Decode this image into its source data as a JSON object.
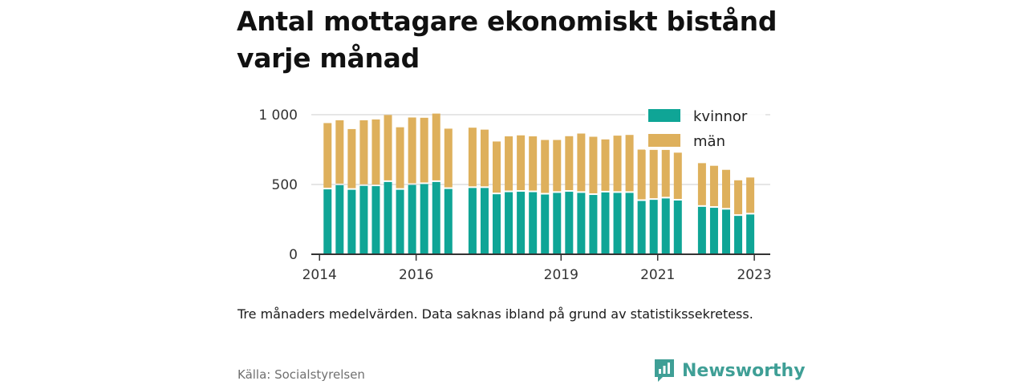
{
  "title": "Antal mottagare ekonomiskt bistånd varje månad",
  "note": "Tre månaders medelvärden. Data saknas ibland på grund av statistikssekretess.",
  "source": "Källa: Socialstyrelsen",
  "brand": {
    "name": "Newsworthy",
    "icon": "newsworthy-logo-icon"
  },
  "colors": {
    "kvinnor": "#0fa596",
    "man": "#deb05c",
    "axis": "#333333",
    "grid": "#dddddd"
  },
  "chart_data": {
    "type": "bar",
    "stacked": true,
    "ylim": [
      0,
      1000
    ],
    "yticks": [
      {
        "value": 0,
        "label": "0"
      },
      {
        "value": 500,
        "label": "500"
      },
      {
        "value": 1000,
        "label": "1 000"
      }
    ],
    "xlim": [
      2013.83,
      2023.33
    ],
    "xticks": [
      {
        "value": 2014,
        "label": "2014"
      },
      {
        "value": 2016,
        "label": "2016"
      },
      {
        "value": 2019,
        "label": "2019"
      },
      {
        "value": 2021,
        "label": "2021"
      },
      {
        "value": 2023,
        "label": "2023"
      }
    ],
    "grid": true,
    "legend_position": "top-right",
    "series": [
      {
        "name": "kvinnor",
        "color": "#0fa596",
        "values": [
          465,
          495,
          462,
          490,
          488,
          518,
          462,
          497,
          503,
          518,
          468,
          475,
          475,
          430,
          445,
          448,
          445,
          428,
          440,
          448,
          440,
          425,
          443,
          440,
          440,
          382,
          390,
          400,
          385,
          340,
          333,
          320,
          275,
          285
        ]
      },
      {
        "name": "män",
        "color": "#deb05c",
        "values": [
          475,
          465,
          435,
          470,
          478,
          480,
          448,
          483,
          475,
          490,
          432,
          432,
          418,
          378,
          400,
          404,
          400,
          391,
          379,
          398,
          425,
          417,
          380,
          410,
          415,
          368,
          365,
          350,
          343,
          313,
          301,
          285,
          255,
          265
        ]
      }
    ],
    "periods": [
      "2014-03",
      "2014-06",
      "2014-09",
      "2014-12",
      "2015-03",
      "2015-06",
      "2015-09",
      "2015-12",
      "2016-03",
      "2016-06",
      "2016-09",
      "2017-03",
      "2017-06",
      "2017-09",
      "2017-12",
      "2018-03",
      "2018-06",
      "2018-09",
      "2018-12",
      "2019-03",
      "2019-06",
      "2019-09",
      "2019-12",
      "2020-03",
      "2020-06",
      "2020-09",
      "2020-12",
      "2021-03",
      "2021-06",
      "2021-12",
      "2022-03",
      "2022-06",
      "2022-09",
      "2022-12"
    ]
  }
}
